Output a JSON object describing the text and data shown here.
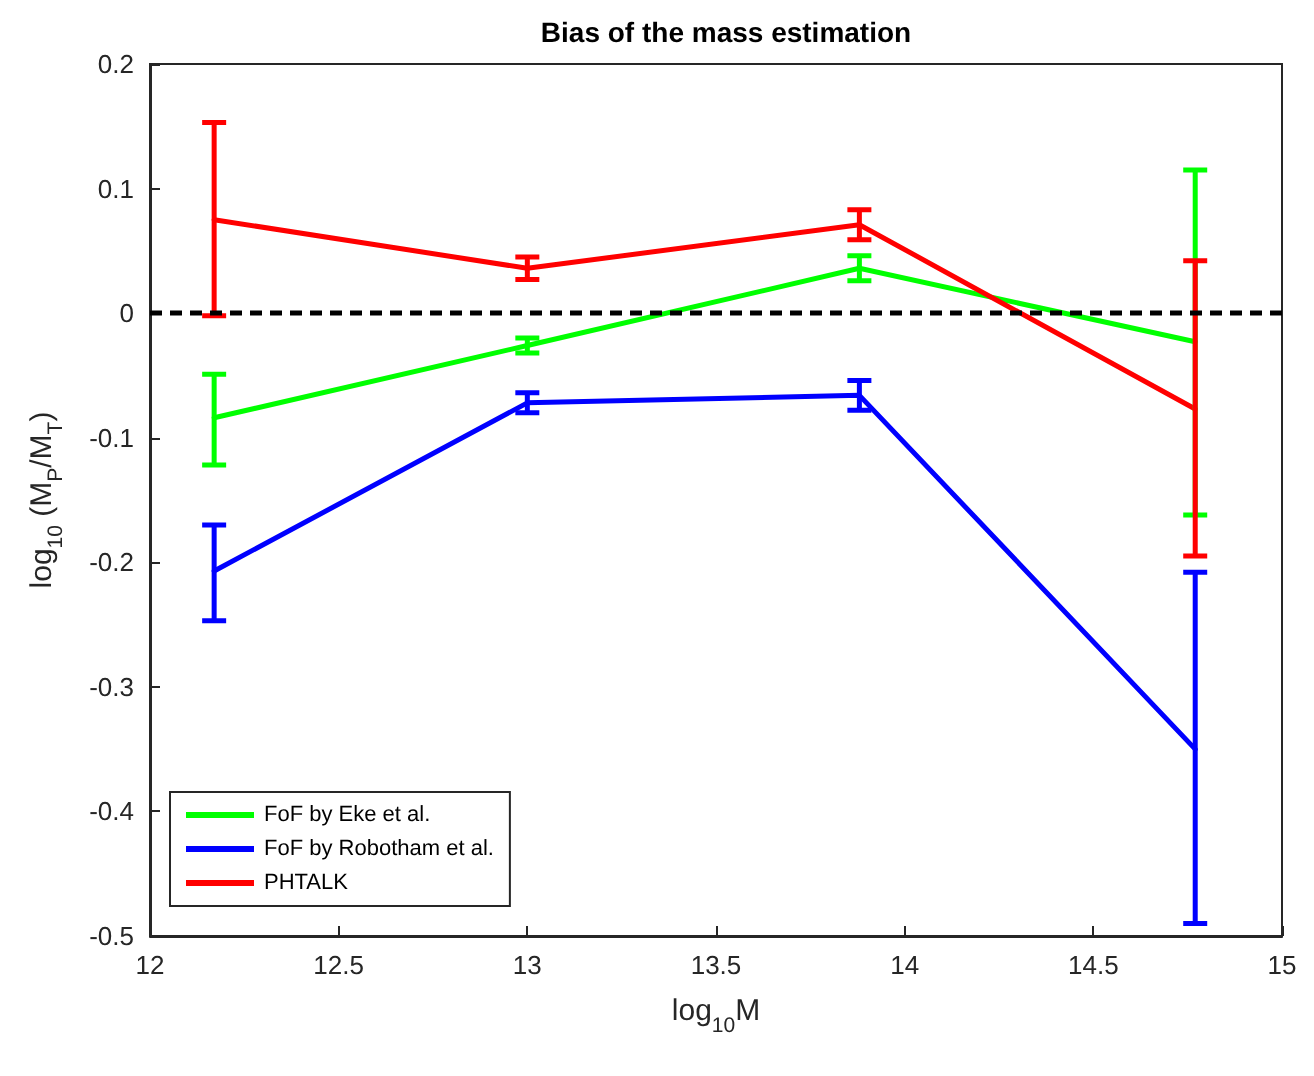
{
  "chart_data": {
    "type": "line",
    "title": "Bias of the mass estimation",
    "xlabel": "log$_{10}$M",
    "ylabel": "log$_{10}$ (M$_{P}$/M$_{T}$)",
    "x": [
      12.17,
      13.0,
      13.88,
      14.77
    ],
    "series": [
      {
        "name": "FoF by Eke et al.",
        "color": "#00ff00",
        "values": [
          -0.084,
          -0.026,
          0.036,
          -0.023
        ],
        "errors": [
          [
            -0.122,
            -0.049
          ],
          [
            -0.032,
            -0.02
          ],
          [
            0.026,
            0.046
          ],
          [
            -0.162,
            0.115
          ]
        ]
      },
      {
        "name": "FoF by Robotham et al.",
        "color": "#0000ff",
        "values": [
          -0.207,
          -0.072,
          -0.066,
          -0.35
        ],
        "errors": [
          [
            -0.247,
            -0.17
          ],
          [
            -0.08,
            -0.064
          ],
          [
            -0.078,
            -0.054
          ],
          [
            -0.49,
            -0.208
          ]
        ]
      },
      {
        "name": "PHTALK",
        "color": "#ff0000",
        "values": [
          0.075,
          0.036,
          0.071,
          -0.077
        ],
        "errors": [
          [
            -0.002,
            0.153
          ],
          [
            0.027,
            0.045
          ],
          [
            0.059,
            0.083
          ],
          [
            -0.195,
            0.042
          ]
        ]
      }
    ],
    "xlim": [
      12,
      15
    ],
    "xticks": [
      12,
      12.5,
      13,
      13.5,
      14,
      14.5,
      15
    ],
    "ylim": [
      -0.5,
      0.2
    ],
    "yticks": [
      -0.5,
      -0.4,
      -0.3,
      -0.2,
      -0.1,
      0,
      0.1,
      0.2
    ],
    "ref_lines": [
      {
        "axis": "y",
        "value": 0,
        "color": "#000000",
        "line_style": "dashed"
      }
    ],
    "legend": "bottom left",
    "grid": false,
    "line_style": "solid"
  }
}
